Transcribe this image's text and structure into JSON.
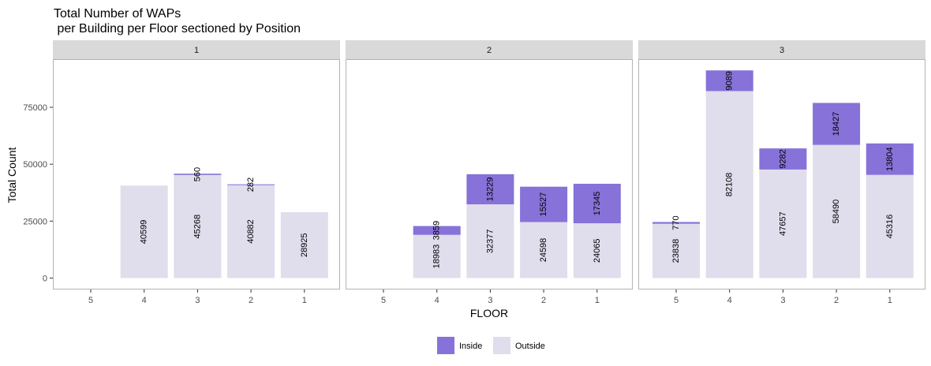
{
  "chart_data": {
    "type": "bar",
    "stacked": true,
    "title_line1": "Total Number of WAPs",
    "title_line2": " per Building per Floor sectioned by Position",
    "xlabel": "FLOOR",
    "ylabel": "Total Count",
    "ylim": [
      0,
      95000
    ],
    "yticks": [
      0,
      25000,
      50000,
      75000
    ],
    "ytick_labels": [
      "0",
      "25000",
      "50000",
      "75000"
    ],
    "categories": [
      "5",
      "4",
      "3",
      "2",
      "1"
    ],
    "legend_position": "bottom",
    "colors": {
      "Inside": "#8672d8",
      "Outside": "#e0ddec",
      "strip": "#d9d9d9",
      "panel_border": "#b3b3b3"
    },
    "series_names": [
      "Inside",
      "Outside"
    ],
    "panels": [
      {
        "label": "1",
        "bars": [
          {
            "floor": "4",
            "outside": 40599,
            "inside": 0,
            "outside_label": "40599",
            "inside_label": ""
          },
          {
            "floor": "3",
            "outside": 45268,
            "inside": 560,
            "outside_label": "45268",
            "inside_label": "560"
          },
          {
            "floor": "2",
            "outside": 40882,
            "inside": 282,
            "outside_label": "40882",
            "inside_label": "282"
          },
          {
            "floor": "1",
            "outside": 28925,
            "inside": 0,
            "outside_label": "28925",
            "inside_label": ""
          }
        ]
      },
      {
        "label": "2",
        "bars": [
          {
            "floor": "4",
            "outside": 18983,
            "inside": 3859,
            "outside_label": "18983",
            "inside_label": "3859"
          },
          {
            "floor": "3",
            "outside": 32377,
            "inside": 13229,
            "outside_label": "32377",
            "inside_label": "13229"
          },
          {
            "floor": "2",
            "outside": 24598,
            "inside": 15527,
            "outside_label": "24598",
            "inside_label": "15527"
          },
          {
            "floor": "1",
            "outside": 24065,
            "inside": 17345,
            "outside_label": "24065",
            "inside_label": "17345"
          }
        ]
      },
      {
        "label": "3",
        "bars": [
          {
            "floor": "5",
            "outside": 23838,
            "inside": 770,
            "outside_label": "23838",
            "inside_label": "770"
          },
          {
            "floor": "4",
            "outside": 82108,
            "inside": 9089,
            "outside_label": "82108",
            "inside_label": "9089"
          },
          {
            "floor": "3",
            "outside": 47657,
            "inside": 9282,
            "outside_label": "47657",
            "inside_label": "9282"
          },
          {
            "floor": "2",
            "outside": 58490,
            "inside": 18427,
            "outside_label": "58490",
            "inside_label": "18427"
          },
          {
            "floor": "1",
            "outside": 45316,
            "inside": 13804,
            "outside_label": "45316",
            "inside_label": "13804"
          }
        ]
      }
    ]
  }
}
